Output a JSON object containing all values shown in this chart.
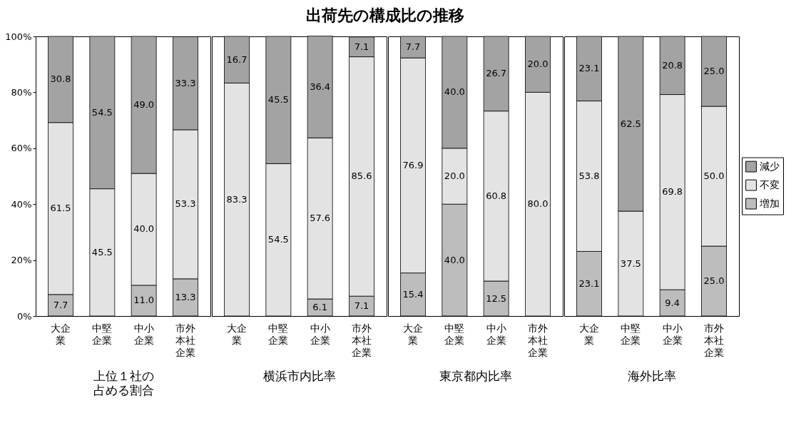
{
  "chart_data": [
    {
      "type": "other",
      "title": "出荷先の構成比の推移"
    },
    {
      "type": "bar",
      "xlabel": "上位１社の占める割合",
      "categories": [
        "大企業",
        "中堅企業",
        "中小企業",
        "市外本社企業"
      ],
      "stacked": true,
      "legend": "right",
      "ylim": [
        0,
        100
      ],
      "yticks": [
        {
          "value": 0,
          "label": "0%"
        },
        {
          "value": 20,
          "label": "20%"
        },
        {
          "value": 40,
          "label": "40%"
        },
        {
          "value": 60,
          "label": "60%"
        },
        {
          "value": 80,
          "label": "80%"
        },
        {
          "value": 100,
          "label": "100%"
        }
      ],
      "series": [
        {
          "name": "増加",
          "color": "#bdbdbd",
          "values": [
            7.7,
            0,
            11.0,
            13.3
          ],
          "value_labels": [
            "7.7",
            null,
            "11.0",
            "13.3"
          ]
        },
        {
          "name": "不変",
          "color": "#e3e3e3",
          "values": [
            61.5,
            45.5,
            40.0,
            53.3
          ],
          "value_labels": [
            "61.5",
            "45.5",
            "40.0",
            "53.3"
          ]
        },
        {
          "name": "減少",
          "color": "#a3a3a3",
          "values": [
            30.8,
            54.5,
            49.0,
            33.3
          ],
          "value_labels": [
            "30.8",
            "54.5",
            "49.0",
            "33.3"
          ]
        }
      ]
    },
    {
      "type": "bar",
      "xlabel": "横浜市内比率",
      "categories": [
        "大企業",
        "中堅企業",
        "中小企業",
        "市外本社企業"
      ],
      "stacked": true,
      "legend": "right",
      "ylim": [
        0,
        100
      ],
      "tick_labels": "x",
      "series": [
        {
          "name": "増加",
          "color": "#bdbdbd",
          "values": [
            0,
            0,
            6.1,
            7.1
          ],
          "value_labels": [
            null,
            null,
            "6.1",
            "7.1"
          ]
        },
        {
          "name": "不変",
          "color": "#e3e3e3",
          "values": [
            83.3,
            54.5,
            57.6,
            85.6
          ],
          "value_labels": [
            "83.3",
            "54.5",
            "57.6",
            "85.6"
          ]
        },
        {
          "name": "減少",
          "color": "#a3a3a3",
          "values": [
            16.7,
            45.5,
            36.4,
            7.1
          ],
          "value_labels": [
            "16.7",
            "45.5",
            "36.4",
            "7.1"
          ]
        }
      ]
    },
    {
      "type": "bar",
      "xlabel": "東京都内比率",
      "categories": [
        "大企業",
        "中堅企業",
        "中小企業",
        "市外本社企業"
      ],
      "stacked": true,
      "legend": "right",
      "ylim": [
        0,
        100
      ],
      "tick_labels": "x",
      "series": [
        {
          "name": "増加",
          "color": "#bdbdbd",
          "values": [
            15.4,
            40.0,
            12.5,
            0
          ],
          "value_labels": [
            "15.4",
            "40.0",
            "12.5",
            null
          ]
        },
        {
          "name": "不変",
          "color": "#e3e3e3",
          "values": [
            76.9,
            20.0,
            60.8,
            80.0
          ],
          "value_labels": [
            "76.9",
            "20.0",
            "60.8",
            "80.0"
          ]
        },
        {
          "name": "減少",
          "color": "#a3a3a3",
          "values": [
            7.7,
            40.0,
            26.7,
            20.0
          ],
          "value_labels": [
            "7.7",
            "40.0",
            "26.7",
            "20.0"
          ]
        }
      ]
    },
    {
      "type": "bar",
      "xlabel": "海外比率",
      "categories": [
        "大企業",
        "中堅企業",
        "中小企業",
        "市外本社企業"
      ],
      "stacked": true,
      "legend": "right",
      "ylim": [
        0,
        100
      ],
      "tick_labels": "x",
      "series": [
        {
          "name": "増加",
          "color": "#bdbdbd",
          "values": [
            23.1,
            0,
            9.4,
            25.0
          ],
          "value_labels": [
            "23.1",
            null,
            "9.4",
            "25.0"
          ]
        },
        {
          "name": "不変",
          "color": "#e3e3e3",
          "values": [
            53.8,
            37.5,
            69.8,
            50.0
          ],
          "value_labels": [
            "53.8",
            "37.5",
            "69.8",
            "50.0"
          ]
        },
        {
          "name": "減少",
          "color": "#a3a3a3",
          "values": [
            23.1,
            62.5,
            20.8,
            25.0
          ],
          "value_labels": [
            "23.1",
            "62.5",
            "20.8",
            "25.0"
          ]
        }
      ]
    }
  ]
}
